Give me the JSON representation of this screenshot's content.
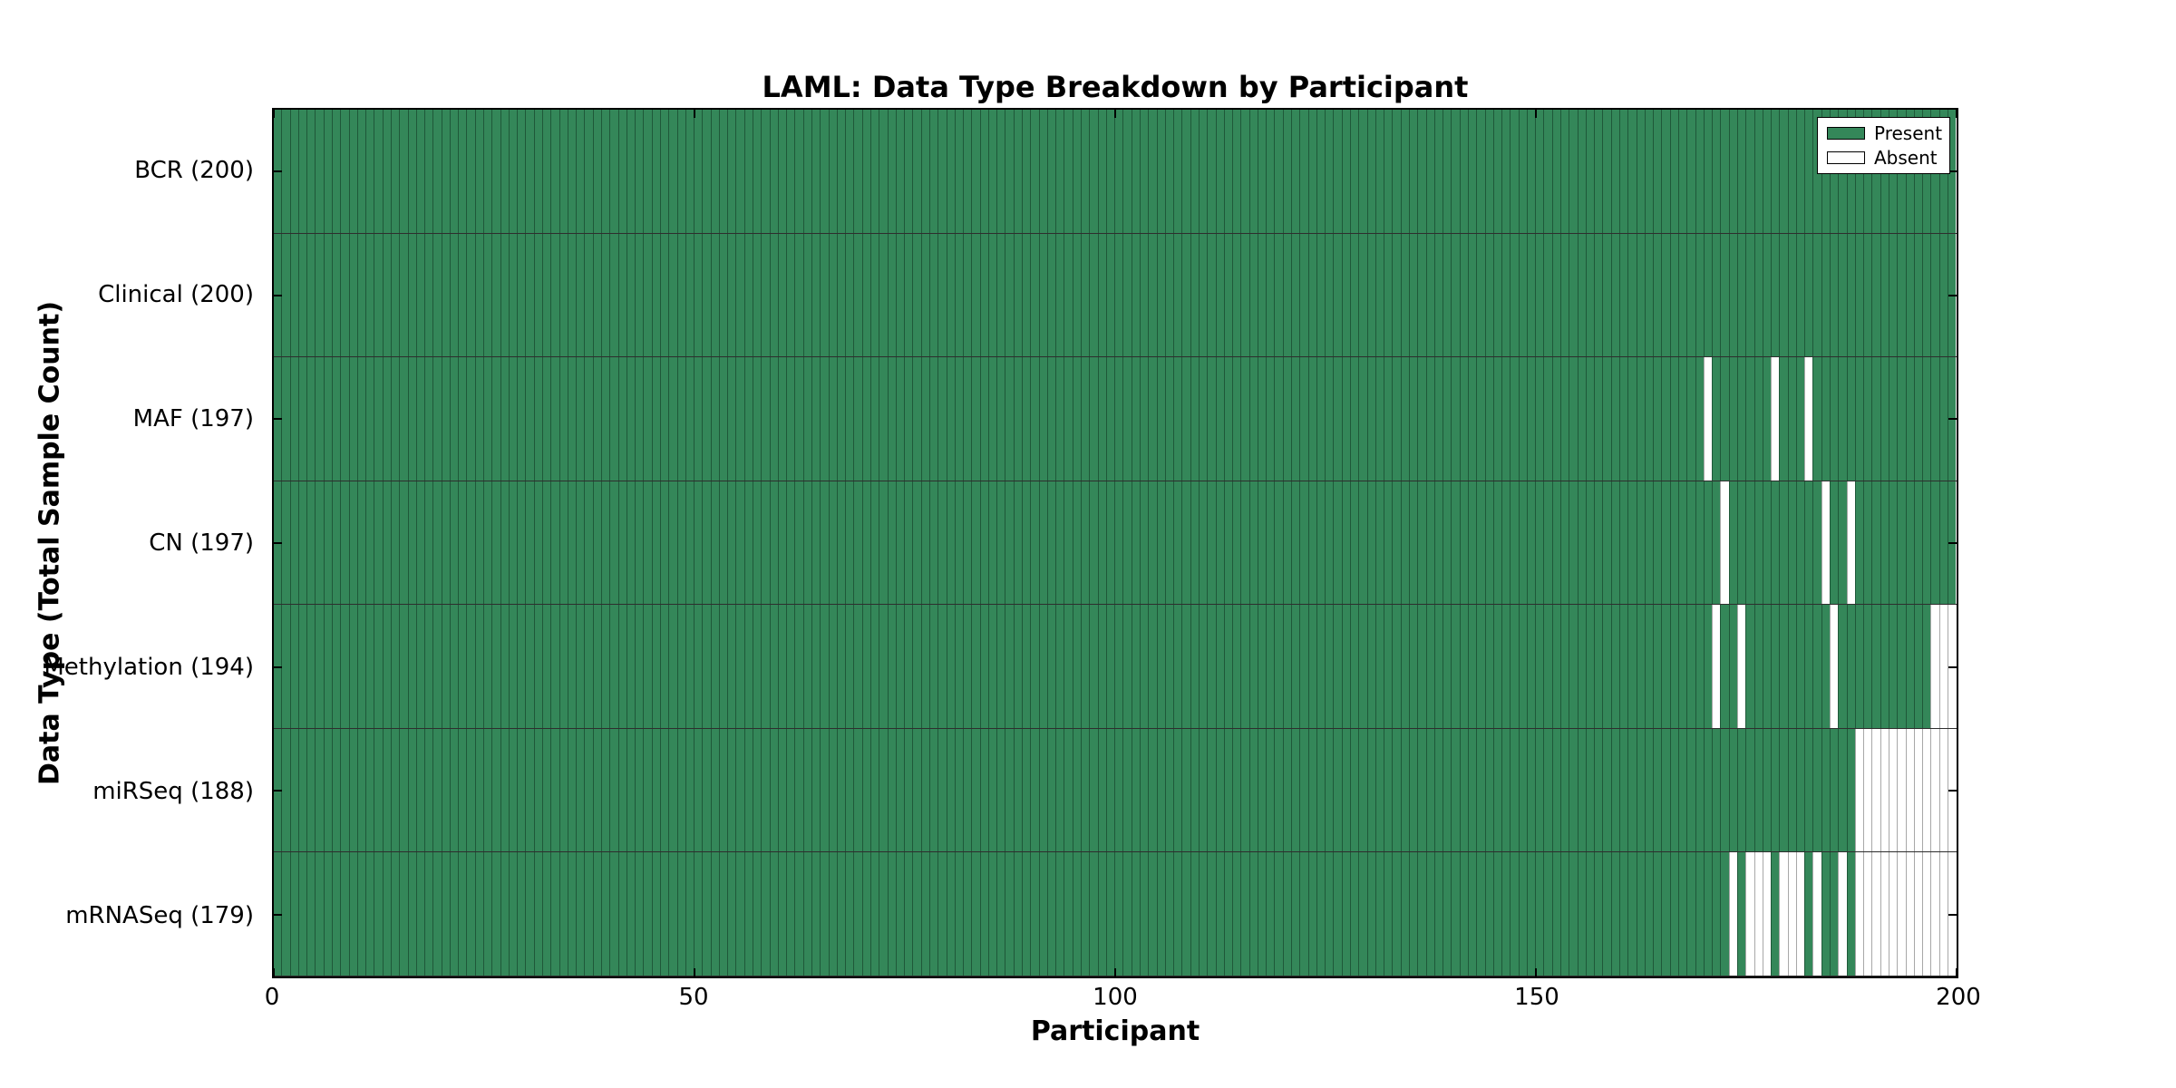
{
  "chart_data": {
    "type": "heatmap",
    "title": "LAML: Data Type Breakdown by Participant",
    "xlabel": "Participant",
    "ylabel": "Data Type (Total Sample Count)",
    "n_participants": 200,
    "x_ticks": [
      0,
      50,
      100,
      150,
      200
    ],
    "xlim": [
      0,
      200
    ],
    "grid": false,
    "legend_position": "upper right",
    "legend": [
      {
        "label": "Present",
        "color": "#348759"
      },
      {
        "label": "Absent",
        "color": "#ffffff"
      }
    ],
    "colors": {
      "present_fill": "#348759",
      "present_edge": "#1f5839",
      "absent_fill": "#ffffff",
      "absent_edge": "#a8a8a8",
      "axis_border": "#000000",
      "row_divider": "#2e2e2e",
      "text": "#000000"
    },
    "rows": [
      {
        "data_type": "BCR",
        "label": "BCR (200)",
        "present_count": 200,
        "absent_participants": []
      },
      {
        "data_type": "Clinical",
        "label": "Clinical (200)",
        "present_count": 200,
        "absent_participants": []
      },
      {
        "data_type": "MAF",
        "label": "MAF (197)",
        "present_count": 197,
        "absent_participants": [
          170,
          178,
          182
        ]
      },
      {
        "data_type": "CN",
        "label": "CN (197)",
        "present_count": 197,
        "absent_participants": [
          172,
          184,
          187
        ]
      },
      {
        "data_type": "Methylation",
        "label": "Methylation (194)",
        "present_count": 194,
        "absent_participants": [
          171,
          174,
          185,
          197,
          198,
          199
        ]
      },
      {
        "data_type": "miRSeq",
        "label": "miRSeq (188)",
        "present_count": 188,
        "absent_participants": [
          188,
          189,
          190,
          191,
          192,
          193,
          194,
          195,
          196,
          197,
          198,
          199
        ]
      },
      {
        "data_type": "mRNASeq",
        "label": "mRNASeq (179)",
        "present_count": 179,
        "absent_participants": [
          173,
          175,
          176,
          177,
          179,
          180,
          181,
          183,
          186,
          188,
          189,
          190,
          191,
          192,
          193,
          194,
          195,
          196,
          197,
          198,
          199
        ]
      }
    ]
  }
}
